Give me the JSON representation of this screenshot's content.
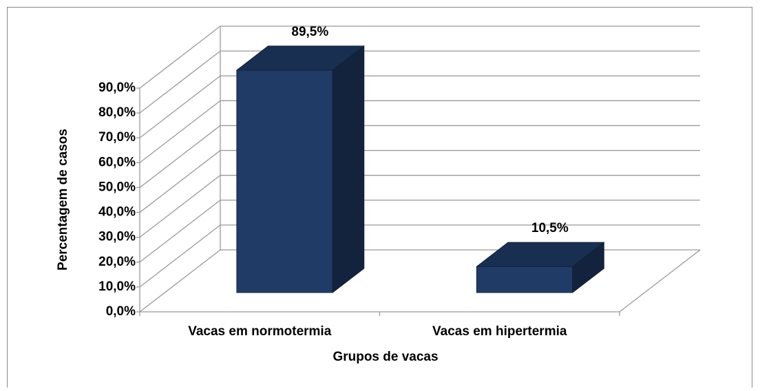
{
  "chart_data": {
    "type": "bar3d",
    "x_label": "Grupos de vacas",
    "y_label": "Percentagem de casos",
    "categories": [
      "Vacas em normotermia",
      "Vacas em hipertermia"
    ],
    "values": [
      89.5,
      10.5
    ],
    "value_labels": [
      "89,5%",
      "10,5%"
    ],
    "color": "#1f3b66",
    "ylim": [
      0,
      90
    ],
    "yticks": [
      {
        "value": 0,
        "label": "0,0%"
      },
      {
        "value": 10,
        "label": "10,0%"
      },
      {
        "value": 20,
        "label": "20,0%"
      },
      {
        "value": 30,
        "label": "30,0%"
      },
      {
        "value": 40,
        "label": "40,0%"
      },
      {
        "value": 50,
        "label": "50,0%"
      },
      {
        "value": 60,
        "label": "60,0%"
      },
      {
        "value": 70,
        "label": "70,0%"
      },
      {
        "value": 80,
        "label": "80,0%"
      },
      {
        "value": 90,
        "label": "90,0%"
      }
    ],
    "grid": true
  }
}
